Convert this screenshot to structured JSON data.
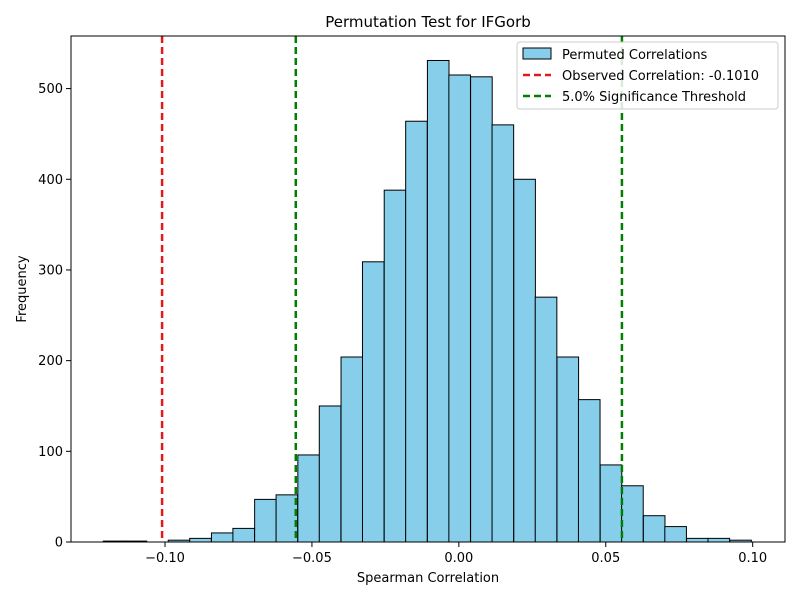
{
  "chart_data": {
    "type": "bar",
    "title": "Permutation Test for IFGorb",
    "xlabel": "Spearman Correlation",
    "ylabel": "Frequency",
    "xlim": [
      -0.132,
      0.111
    ],
    "ylim": [
      0,
      558
    ],
    "xticks": [
      -0.1,
      -0.05,
      0.0,
      0.05,
      0.1
    ],
    "xtick_labels": [
      "−0.10",
      "−0.05",
      "0.00",
      "0.05",
      "0.10"
    ],
    "yticks": [
      0,
      100,
      200,
      300,
      400,
      500
    ],
    "ytick_labels": [
      "0",
      "100",
      "200",
      "300",
      "400",
      "500"
    ],
    "bin_width": 0.00735,
    "bins": [
      {
        "x0": -0.121,
        "count": 1
      },
      {
        "x0": -0.1136,
        "count": 1
      },
      {
        "x0": -0.0989,
        "count": 2
      },
      {
        "x0": -0.0916,
        "count": 4
      },
      {
        "x0": -0.0842,
        "count": 10
      },
      {
        "x0": -0.0769,
        "count": 15
      },
      {
        "x0": -0.0695,
        "count": 47
      },
      {
        "x0": -0.0622,
        "count": 52
      },
      {
        "x0": -0.0548,
        "count": 96
      },
      {
        "x0": -0.0475,
        "count": 150
      },
      {
        "x0": -0.0401,
        "count": 204
      },
      {
        "x0": -0.0328,
        "count": 309
      },
      {
        "x0": -0.0254,
        "count": 388
      },
      {
        "x0": -0.0181,
        "count": 464
      },
      {
        "x0": -0.0107,
        "count": 531
      },
      {
        "x0": -0.0034,
        "count": 515
      },
      {
        "x0": 0.004,
        "count": 513
      },
      {
        "x0": 0.0113,
        "count": 460
      },
      {
        "x0": 0.0187,
        "count": 400
      },
      {
        "x0": 0.026,
        "count": 270
      },
      {
        "x0": 0.0334,
        "count": 204
      },
      {
        "x0": 0.0407,
        "count": 157
      },
      {
        "x0": 0.0481,
        "count": 85
      },
      {
        "x0": 0.0554,
        "count": 62
      },
      {
        "x0": 0.0628,
        "count": 29
      },
      {
        "x0": 0.0701,
        "count": 17
      },
      {
        "x0": 0.0775,
        "count": 4
      },
      {
        "x0": 0.0848,
        "count": 4
      },
      {
        "x0": 0.0922,
        "count": 2
      }
    ],
    "vlines": [
      {
        "x": -0.101,
        "color": "#e31a1c",
        "legend_key": "observed"
      },
      {
        "x": -0.0555,
        "color": "#008000",
        "legend_key": "threshold"
      },
      {
        "x": 0.0555,
        "color": "#008000",
        "legend_key": "threshold"
      }
    ],
    "legend": {
      "position": "top-right",
      "entries": [
        {
          "label": "Permuted Correlations",
          "kind": "patch",
          "color": "#87CEEB"
        },
        {
          "label": "Observed Correlation: -0.1010",
          "kind": "dashed",
          "color": "#e31a1c"
        },
        {
          "label": "5.0% Significance Threshold",
          "kind": "dashed",
          "color": "#008000"
        }
      ]
    },
    "colors": {
      "bar_fill": "#87CEEB",
      "bar_edge": "#000000",
      "observed": "#e31a1c",
      "threshold": "#008000"
    }
  }
}
